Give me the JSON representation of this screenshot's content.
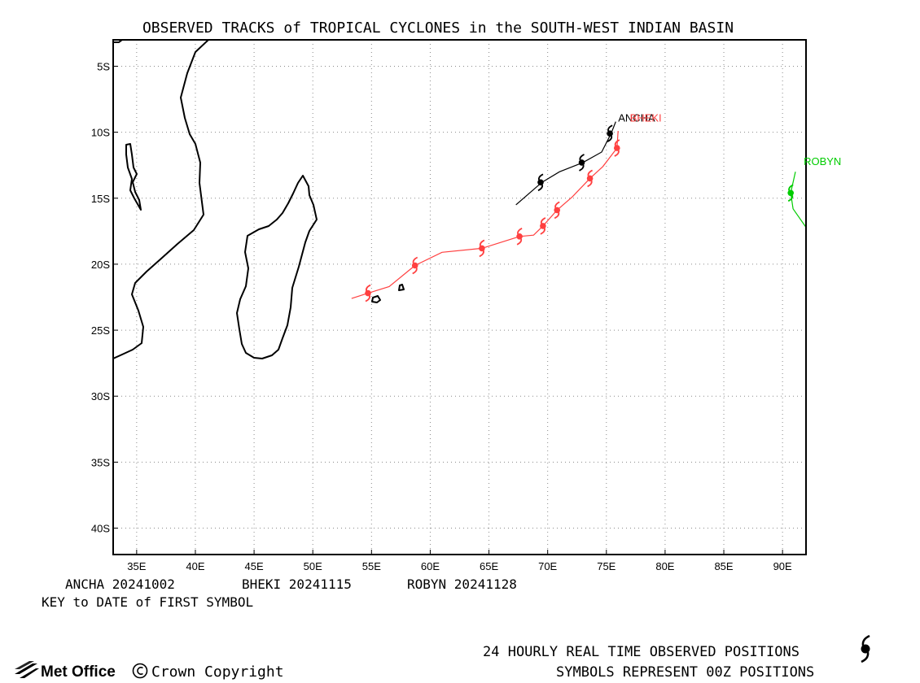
{
  "title": "OBSERVED TRACKS of TROPICAL CYCLONES in the SOUTH-WEST INDIAN BASIN",
  "map": {
    "lon_range": [
      33,
      92
    ],
    "lat_range": [
      -42,
      -3
    ],
    "lon_ticks": [
      {
        "value": 35,
        "label": "35E"
      },
      {
        "value": 40,
        "label": "40E"
      },
      {
        "value": 45,
        "label": "45E"
      },
      {
        "value": 50,
        "label": "50E"
      },
      {
        "value": 55,
        "label": "55E"
      },
      {
        "value": 60,
        "label": "60E"
      },
      {
        "value": 65,
        "label": "65E"
      },
      {
        "value": 70,
        "label": "70E"
      },
      {
        "value": 75,
        "label": "75E"
      },
      {
        "value": 80,
        "label": "80E"
      },
      {
        "value": 85,
        "label": "85E"
      },
      {
        "value": 90,
        "label": "90E"
      }
    ],
    "lat_ticks": [
      {
        "value": -5,
        "label": "5S"
      },
      {
        "value": -10,
        "label": "10S"
      },
      {
        "value": -15,
        "label": "15S"
      },
      {
        "value": -20,
        "label": "20S"
      },
      {
        "value": -25,
        "label": "25S"
      },
      {
        "value": -30,
        "label": "30S"
      },
      {
        "value": -35,
        "label": "35S"
      },
      {
        "value": -40,
        "label": "40S"
      }
    ],
    "grid": true
  },
  "storms": [
    {
      "name": "ANCHA",
      "color": "#000000",
      "label_lonlat": [
        76.0,
        -9.2
      ],
      "track": [
        [
          67.3,
          -15.5
        ],
        [
          69.5,
          -13.8
        ],
        [
          71.0,
          -13.0
        ],
        [
          73.0,
          -12.3
        ],
        [
          74.6,
          -11.5
        ],
        [
          75.4,
          -10.1
        ],
        [
          75.8,
          -9.2
        ]
      ],
      "positions": [
        [
          69.4,
          -13.8
        ],
        [
          72.9,
          -12.3
        ],
        [
          75.3,
          -10.1
        ]
      ]
    },
    {
      "name": "BHEKI",
      "color": "#ff4040",
      "label_lonlat": [
        77.0,
        -9.2
      ],
      "track": [
        [
          76.0,
          -9.9
        ],
        [
          75.9,
          -11.2
        ],
        [
          74.7,
          -12.6
        ],
        [
          73.6,
          -13.5
        ],
        [
          72.1,
          -14.9
        ],
        [
          70.8,
          -15.9
        ],
        [
          69.6,
          -17.1
        ],
        [
          68.8,
          -17.8
        ],
        [
          67.6,
          -17.9
        ],
        [
          64.4,
          -18.8
        ],
        [
          61.0,
          -19.1
        ],
        [
          58.7,
          -20.1
        ],
        [
          56.5,
          -21.7
        ],
        [
          54.7,
          -22.2
        ],
        [
          53.3,
          -22.6
        ]
      ],
      "positions": [
        [
          75.9,
          -11.2
        ],
        [
          73.6,
          -13.5
        ],
        [
          70.8,
          -15.9
        ],
        [
          69.6,
          -17.1
        ],
        [
          67.6,
          -17.9
        ],
        [
          64.4,
          -18.8
        ],
        [
          58.7,
          -20.1
        ],
        [
          54.7,
          -22.2
        ]
      ]
    },
    {
      "name": "ROBYN",
      "color": "#00cc00",
      "label_lonlat": [
        91.8,
        -12.5
      ],
      "track": [
        [
          91.1,
          -13.0
        ],
        [
          90.7,
          -14.6
        ],
        [
          90.9,
          -15.8
        ],
        [
          92.0,
          -17.2
        ],
        [
          93.7,
          -18.0
        ]
      ],
      "positions": [
        [
          90.7,
          -14.6
        ]
      ]
    }
  ],
  "key": {
    "entries": [
      "ANCHA 20241002",
      "BHEKI 20241115",
      "ROBYN 20241128"
    ],
    "caption": "KEY to DATE of FIRST SYMBOL"
  },
  "footer": {
    "line1": "24 HOURLY REAL TIME OBSERVED POSITIONS",
    "line2": "SYMBOLS REPRESENT 00Z POSITIONS",
    "logo": "Met Office",
    "copyright": "Crown Copyright"
  }
}
